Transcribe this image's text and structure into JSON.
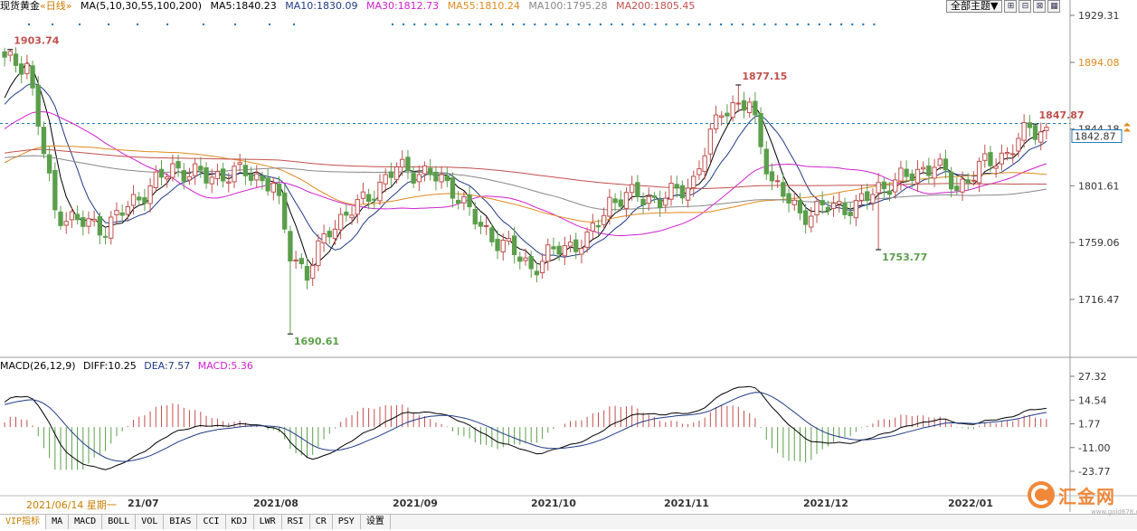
{
  "header": {
    "symbol": "现货黄金",
    "period": "«日线»",
    "ma_label": "MA(5,10,30,55,100,200)",
    "ma5": "MA5:1840.23",
    "ma10": "MA10:1830.09",
    "ma30": "MA30:1812.73",
    "ma55": "MA55:1810.24",
    "ma100": "MA100:1795.28",
    "ma200": "MA200:1805.45",
    "theme_button": "全部主题▼",
    "icons": [
      "grid-plus-icon",
      "grid-minus-icon",
      "grid-fit-icon",
      "grid-full-icon"
    ],
    "colors": {
      "ma5": "#000000",
      "ma10": "#1f3b86",
      "ma30": "#d020d0",
      "ma55": "#e08a1e",
      "ma100": "#888888",
      "ma200": "#c0504d"
    }
  },
  "macd_header": {
    "label": "MACD(26,12,9)",
    "diff": "DIFF:10.25",
    "dea": "DEA:7.57",
    "macd": "MACD:5.36"
  },
  "price_axis": {
    "ticks": [
      "1929.31",
      "1894.08",
      "1844.18",
      "1801.61",
      "1759.06",
      "1716.47"
    ],
    "current": "1842.87"
  },
  "macd_axis": {
    "ticks": [
      "27.32",
      "14.54",
      "1.77",
      "-11.00",
      "-23.77"
    ]
  },
  "x_axis": {
    "cursor_date": "2021/06/14 星期一",
    "labels": [
      "21/07",
      "2021/08",
      "2021/09",
      "2021/10",
      "2021/11",
      "2021/12",
      "2022/01"
    ]
  },
  "tabs": [
    "VIP指标",
    "MA",
    "MACD",
    "BOLL",
    "VOL",
    "BIAS",
    "CCI",
    "KDJ",
    "LWR",
    "RSI",
    "CR",
    "PSY",
    "设置"
  ],
  "logo": {
    "text": "汇金网",
    "url": "www.gold678.com"
  },
  "chart_data": [
    {
      "type": "candlestick",
      "title": "现货黄金",
      "ylim": [
        1690.61,
        1929.31
      ],
      "up_color": "#c0504d",
      "down_color": "#5b9e4b",
      "annotations": [
        {
          "label": "1903.74",
          "type": "high",
          "date": "2021/06/14"
        },
        {
          "label": "1690.61",
          "type": "low",
          "date": "2021/08/09"
        },
        {
          "label": "1877.15",
          "type": "high",
          "date": "2021/11/16"
        },
        {
          "label": "1753.77",
          "type": "low",
          "date": "2021/12/15"
        },
        {
          "label": "1847.87",
          "type": "high",
          "date": "2022/01"
        }
      ],
      "current_price": 1842.87,
      "anchors": [
        {
          "i": 0,
          "v": 1895
        },
        {
          "i": 4,
          "v": 1893
        },
        {
          "i": 9,
          "v": 1782
        },
        {
          "i": 13,
          "v": 1775
        },
        {
          "i": 18,
          "v": 1770
        },
        {
          "i": 23,
          "v": 1790
        },
        {
          "i": 30,
          "v": 1815
        },
        {
          "i": 36,
          "v": 1808
        },
        {
          "i": 43,
          "v": 1812
        },
        {
          "i": 48,
          "v": 1802
        },
        {
          "i": 51,
          "v": 1752
        },
        {
          "i": 54,
          "v": 1735
        },
        {
          "i": 58,
          "v": 1770
        },
        {
          "i": 64,
          "v": 1790
        },
        {
          "i": 70,
          "v": 1815
        },
        {
          "i": 76,
          "v": 1810
        },
        {
          "i": 80,
          "v": 1800
        },
        {
          "i": 85,
          "v": 1770
        },
        {
          "i": 90,
          "v": 1755
        },
        {
          "i": 94,
          "v": 1740
        },
        {
          "i": 99,
          "v": 1755
        },
        {
          "i": 104,
          "v": 1760
        },
        {
          "i": 108,
          "v": 1790
        },
        {
          "i": 113,
          "v": 1795
        },
        {
          "i": 117,
          "v": 1790
        },
        {
          "i": 123,
          "v": 1805
        },
        {
          "i": 128,
          "v": 1860
        },
        {
          "i": 133,
          "v": 1862
        },
        {
          "i": 137,
          "v": 1805
        },
        {
          "i": 142,
          "v": 1780
        },
        {
          "i": 147,
          "v": 1786
        },
        {
          "i": 152,
          "v": 1786
        },
        {
          "i": 156,
          "v": 1800
        },
        {
          "i": 161,
          "v": 1808
        },
        {
          "i": 166,
          "v": 1818
        },
        {
          "i": 170,
          "v": 1800
        },
        {
          "i": 175,
          "v": 1818
        },
        {
          "i": 179,
          "v": 1826
        },
        {
          "i": 183,
          "v": 1845
        },
        {
          "i": 186,
          "v": 1842
        }
      ]
    },
    {
      "type": "line+bar",
      "title": "MACD(26,12,9)",
      "ylim": [
        -23.77,
        27.32
      ],
      "series": [
        {
          "name": "DIFF",
          "color": "#000000"
        },
        {
          "name": "DEA",
          "color": "#1f3b86"
        },
        {
          "name": "MACD",
          "up_color": "#c0504d",
          "down_color": "#5b9e4b"
        }
      ]
    }
  ]
}
